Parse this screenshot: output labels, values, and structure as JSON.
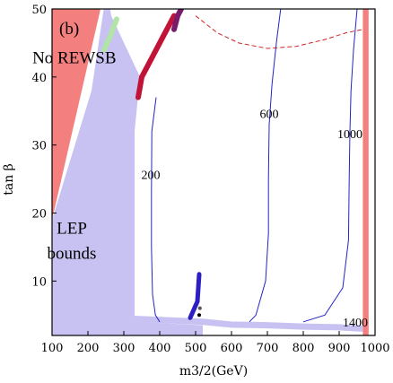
{
  "chart_data": {
    "type": "scatter",
    "panel_label": "(b)",
    "xlabel": "m3/2(GeV)",
    "ylabel": "tan β",
    "xlim": [
      100,
      1000
    ],
    "ylim": [
      2,
      50
    ],
    "xticks": [
      100,
      200,
      300,
      400,
      500,
      600,
      700,
      800,
      900,
      1000
    ],
    "yticks": [
      10,
      20,
      30,
      40,
      50
    ],
    "regions": [
      {
        "name": "No REWSB",
        "color": "#f47f7f",
        "polygon": [
          [
            100,
            19
          ],
          [
            235,
            50
          ],
          [
            100,
            50
          ]
        ],
        "label_at": [
          162,
          42
        ]
      },
      {
        "name": "LEP bounds",
        "color": "#c8c2f2",
        "polygon": [
          [
            100,
            19
          ],
          [
            210,
            38
          ],
          [
            244,
            50
          ],
          [
            262,
            50
          ],
          [
            265,
            49
          ],
          [
            345,
            40
          ],
          [
            330,
            32
          ],
          [
            330,
            4
          ],
          [
            520,
            3.5
          ],
          [
            520,
            2
          ],
          [
            100,
            2
          ]
        ],
        "label_at": [
          155,
          17
        ]
      },
      {
        "name": "",
        "color": "#f47f7f",
        "polygon": [
          [
            966,
            2
          ],
          [
            982,
            2
          ],
          [
            982,
            50
          ],
          [
            966,
            50
          ]
        ]
      }
    ],
    "bands": [
      {
        "color": "#b2e3a7",
        "points": [
          [
            245,
            44
          ],
          [
            262,
            46
          ],
          [
            280,
            48.5
          ]
        ]
      },
      {
        "color": "#c11338",
        "points": [
          [
            340,
            37
          ],
          [
            350,
            40
          ],
          [
            380,
            43
          ],
          [
            410,
            46
          ],
          [
            440,
            49
          ]
        ]
      },
      {
        "color": "#7a1a6a",
        "points": [
          [
            440,
            47
          ],
          [
            450,
            49
          ],
          [
            460,
            50
          ]
        ]
      }
    ],
    "contours": [
      {
        "label": "200",
        "label_at": [
          375,
          25
        ],
        "points": [
          [
            390,
            37
          ],
          [
            378,
            32
          ],
          [
            377,
            23
          ],
          [
            377,
            15
          ],
          [
            380,
            8
          ],
          [
            388,
            5
          ],
          [
            400,
            4
          ]
        ]
      },
      {
        "label": "600",
        "label_at": [
          705,
          34
        ],
        "points": [
          [
            737,
            50
          ],
          [
            725,
            45
          ],
          [
            713,
            39
          ],
          [
            705,
            33
          ],
          [
            703,
            25
          ],
          [
            703,
            17
          ],
          [
            695,
            10
          ],
          [
            668,
            5
          ],
          [
            650,
            4
          ]
        ]
      },
      {
        "label": "1000",
        "label_at": [
          930,
          31
        ],
        "points": [
          [
            950,
            50
          ],
          [
            940,
            44
          ],
          [
            933,
            38
          ],
          [
            930,
            32
          ],
          [
            928,
            25
          ],
          [
            926,
            16
          ],
          [
            910,
            9
          ],
          [
            860,
            5
          ],
          [
            800,
            4
          ]
        ]
      },
      {
        "label": "1400",
        "label_at": [
          945,
          3.3
        ],
        "points": []
      }
    ],
    "dashed_curve": {
      "color": "#d62020",
      "points": [
        [
          500,
          49
        ],
        [
          560,
          46.5
        ],
        [
          620,
          45
        ],
        [
          700,
          44.2
        ],
        [
          780,
          44.5
        ],
        [
          860,
          45.5
        ],
        [
          920,
          46.5
        ],
        [
          966,
          47
        ]
      ]
    },
    "lower_strip": {
      "color": "#c8c2f2",
      "points": [
        [
          300,
          4.5
        ],
        [
          520,
          4
        ],
        [
          600,
          3.6
        ],
        [
          700,
          3.5
        ],
        [
          800,
          3.3
        ],
        [
          900,
          3.2
        ],
        [
          966,
          3
        ]
      ]
    },
    "markers": [
      {
        "x": 505,
        "y": 6.6,
        "color": "#2c20c2",
        "size": 5,
        "span": [
          [
            485,
            4.6
          ],
          [
            505,
            7
          ],
          [
            510,
            11
          ]
        ]
      },
      {
        "x": 510,
        "y": 5,
        "color": "#000000",
        "size": 2
      },
      {
        "x": 512,
        "y": 6,
        "color": "#555555",
        "size": 2
      }
    ]
  }
}
